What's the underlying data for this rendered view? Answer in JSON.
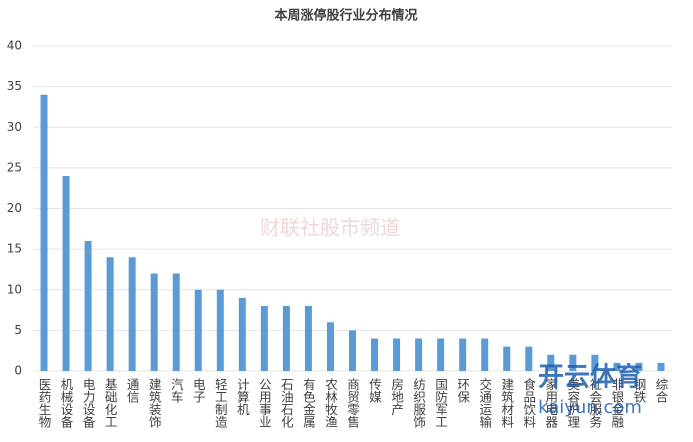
{
  "chart_data": {
    "type": "bar",
    "title": "本周涨停股行业分布情况",
    "categories": [
      "医药生物",
      "机械设备",
      "电力设备",
      "基础化工",
      "通信",
      "建筑装饰",
      "汽车",
      "电子",
      "轻工制造",
      "计算机",
      "公用事业",
      "石油石化",
      "有色金属",
      "农林牧渔",
      "商贸零售",
      "传媒",
      "房地产",
      "纺织服饰",
      "国防军工",
      "环保",
      "交通运输",
      "建筑材料",
      "食品饮料",
      "家用电器",
      "美容护理",
      "社会服务",
      "非银金融",
      "钢铁",
      "综合"
    ],
    "values": [
      34,
      24,
      16,
      14,
      14,
      12,
      12,
      10,
      10,
      9,
      8,
      8,
      8,
      6,
      5,
      4,
      4,
      4,
      4,
      4,
      4,
      3,
      3,
      2,
      2,
      2,
      1,
      1,
      1
    ],
    "color": "#5b9bd5",
    "ylim": [
      0,
      40
    ],
    "yticks": [
      0,
      5,
      10,
      15,
      20,
      25,
      30,
      35,
      40
    ],
    "grid": true
  },
  "watermarks": [
    "财联社股市频道",
    "开云体育",
    "kaiyun.com"
  ]
}
